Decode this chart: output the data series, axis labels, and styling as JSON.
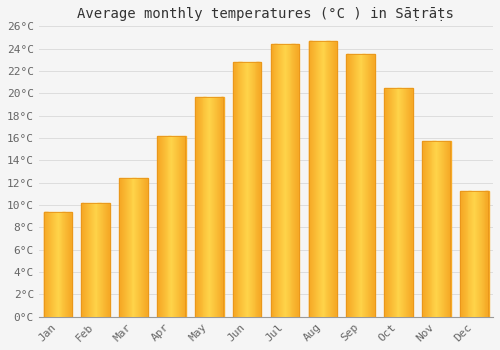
{
  "title": "Average monthly temperatures (°C ) in Sāṭrāṭs",
  "months": [
    "Jan",
    "Feb",
    "Mar",
    "Apr",
    "May",
    "Jun",
    "Jul",
    "Aug",
    "Sep",
    "Oct",
    "Nov",
    "Dec"
  ],
  "values": [
    9.4,
    10.2,
    12.4,
    16.2,
    19.7,
    22.8,
    24.4,
    24.7,
    23.5,
    20.5,
    15.7,
    11.3
  ],
  "bar_color_outer": "#F5A623",
  "bar_color_center": "#FFD44A",
  "background_color": "#F5F5F5",
  "grid_color": "#DDDDDD",
  "ylim": [
    0,
    26
  ],
  "yticks": [
    0,
    2,
    4,
    6,
    8,
    10,
    12,
    14,
    16,
    18,
    20,
    22,
    24,
    26
  ],
  "ytick_labels": [
    "0°C",
    "2°C",
    "4°C",
    "6°C",
    "8°C",
    "10°C",
    "12°C",
    "14°C",
    "16°C",
    "18°C",
    "20°C",
    "22°C",
    "24°C",
    "26°C"
  ],
  "tick_fontsize": 8,
  "title_fontsize": 10,
  "bar_width": 0.75
}
